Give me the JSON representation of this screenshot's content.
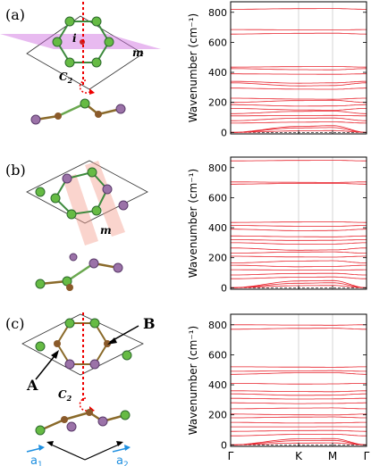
{
  "panels": [
    {
      "label": "(a)",
      "symbols": {
        "inversion": "i",
        "mirror": "m",
        "rotation": "C",
        "rotation_sub": "2"
      }
    },
    {
      "label": "(b)",
      "symbols": {
        "mirror": "m"
      }
    },
    {
      "label": "(c)",
      "symbols": {
        "site_a": "A",
        "site_b": "B",
        "rotation": "C",
        "rotation_sub": "2"
      },
      "lattice_vectors": [
        {
          "symbol": "a",
          "sub": "1"
        },
        {
          "symbol": "a",
          "sub": "2"
        }
      ]
    }
  ],
  "chart_data": [
    {
      "type": "line",
      "title": "",
      "xlabel": "",
      "ylabel": "Wavenumber (cm⁻¹)",
      "ylim": [
        -10,
        870
      ],
      "yticks": [
        0,
        200,
        400,
        600,
        800
      ],
      "x_ticks": [
        {
          "label": "Γ",
          "pos": 0
        },
        {
          "label": "K",
          "pos": 0.5
        },
        {
          "label": "M",
          "pos": 0.75
        },
        {
          "label": "Γ",
          "pos": 1
        }
      ],
      "tick_labels_shown": false,
      "zero_line": "dashed",
      "series_color": "#e8202a",
      "bands": [
        {
          "name": "b1",
          "values": [
            0,
            40,
            45,
            0
          ]
        },
        {
          "name": "b2",
          "values": [
            0,
            30,
            32,
            0
          ]
        },
        {
          "name": "b3",
          "values": [
            0,
            10,
            12,
            0
          ]
        },
        {
          "name": "b4",
          "values": [
            62,
            68,
            70,
            62
          ]
        },
        {
          "name": "b5",
          "values": [
            78,
            95,
            96,
            78
          ]
        },
        {
          "name": "b6",
          "values": [
            110,
            112,
            113,
            110
          ]
        },
        {
          "name": "b7",
          "values": [
            125,
            140,
            142,
            125
          ]
        },
        {
          "name": "b8",
          "values": [
            160,
            150,
            148,
            160
          ]
        },
        {
          "name": "b9",
          "values": [
            185,
            175,
            176,
            185
          ]
        },
        {
          "name": "b10",
          "values": [
            200,
            212,
            214,
            200
          ]
        },
        {
          "name": "b11",
          "values": [
            228,
            222,
            221,
            228
          ]
        },
        {
          "name": "b12",
          "values": [
            295,
            288,
            287,
            295
          ]
        },
        {
          "name": "b13",
          "values": [
            330,
            310,
            312,
            330
          ]
        },
        {
          "name": "b14",
          "values": [
            340,
            328,
            330,
            340
          ]
        },
        {
          "name": "b15",
          "values": [
            390,
            388,
            387,
            390
          ]
        },
        {
          "name": "b16",
          "values": [
            425,
            418,
            417,
            425
          ]
        },
        {
          "name": "b17",
          "values": [
            435,
            438,
            439,
            435
          ]
        },
        {
          "name": "b18",
          "values": [
            655,
            660,
            661,
            655
          ]
        },
        {
          "name": "b19",
          "values": [
            685,
            683,
            682,
            685
          ]
        },
        {
          "name": "b20",
          "values": [
            820,
            824,
            825,
            820
          ]
        }
      ]
    },
    {
      "type": "line",
      "title": "",
      "xlabel": "",
      "ylabel": "Wavenumber (cm⁻¹)",
      "ylim": [
        -10,
        870
      ],
      "yticks": [
        0,
        200,
        400,
        600,
        800
      ],
      "x_ticks": [
        {
          "label": "Γ",
          "pos": 0
        },
        {
          "label": "K",
          "pos": 0.5
        },
        {
          "label": "M",
          "pos": 0.75
        },
        {
          "label": "Γ",
          "pos": 1
        }
      ],
      "tick_labels_shown": false,
      "zero_line": "dashed",
      "series_color": "#e8202a",
      "bands": [
        {
          "name": "b1",
          "values": [
            0,
            45,
            48,
            0
          ]
        },
        {
          "name": "b2",
          "values": [
            0,
            30,
            33,
            0
          ]
        },
        {
          "name": "b3",
          "values": [
            0,
            14,
            15,
            0
          ]
        },
        {
          "name": "b4",
          "values": [
            60,
            70,
            72,
            60
          ]
        },
        {
          "name": "b5",
          "values": [
            85,
            95,
            96,
            85
          ]
        },
        {
          "name": "b6",
          "values": [
            120,
            118,
            117,
            120
          ]
        },
        {
          "name": "b7",
          "values": [
            150,
            140,
            142,
            150
          ]
        },
        {
          "name": "b8",
          "values": [
            165,
            178,
            180,
            165
          ]
        },
        {
          "name": "b9",
          "values": [
            210,
            205,
            204,
            210
          ]
        },
        {
          "name": "b10",
          "values": [
            230,
            238,
            239,
            230
          ]
        },
        {
          "name": "b11",
          "values": [
            265,
            250,
            252,
            265
          ]
        },
        {
          "name": "b12",
          "values": [
            300,
            290,
            291,
            300
          ]
        },
        {
          "name": "b13",
          "values": [
            320,
            315,
            316,
            320
          ]
        },
        {
          "name": "b14",
          "values": [
            345,
            340,
            339,
            345
          ]
        },
        {
          "name": "b15",
          "values": [
            390,
            380,
            381,
            390
          ]
        },
        {
          "name": "b16",
          "values": [
            415,
            410,
            409,
            415
          ]
        },
        {
          "name": "b17",
          "values": [
            435,
            438,
            439,
            435
          ]
        },
        {
          "name": "b18",
          "values": [
            690,
            695,
            696,
            690
          ]
        },
        {
          "name": "b19",
          "values": [
            705,
            702,
            701,
            705
          ]
        },
        {
          "name": "b20",
          "values": [
            845,
            848,
            849,
            845
          ]
        }
      ]
    },
    {
      "type": "line",
      "title": "",
      "xlabel": "",
      "ylabel": "Wavenumber (cm⁻¹)",
      "ylim": [
        -10,
        870
      ],
      "yticks": [
        0,
        200,
        400,
        600,
        800
      ],
      "x_ticks": [
        {
          "label": "Γ",
          "pos": 0
        },
        {
          "label": "K",
          "pos": 0.5
        },
        {
          "label": "M",
          "pos": 0.75
        },
        {
          "label": "Γ",
          "pos": 1
        }
      ],
      "tick_labels_shown": true,
      "zero_line": "dashed",
      "series_color": "#e8202a",
      "bands": [
        {
          "name": "b1",
          "values": [
            0,
            40,
            42,
            0
          ]
        },
        {
          "name": "b2",
          "values": [
            0,
            28,
            30,
            0
          ]
        },
        {
          "name": "b3",
          "values": [
            0,
            12,
            13,
            0
          ]
        },
        {
          "name": "b4",
          "values": [
            60,
            70,
            71,
            60
          ]
        },
        {
          "name": "b5",
          "values": [
            90,
            95,
            96,
            90
          ]
        },
        {
          "name": "b6",
          "values": [
            120,
            120,
            121,
            120
          ]
        },
        {
          "name": "b7",
          "values": [
            150,
            145,
            146,
            150
          ]
        },
        {
          "name": "b8",
          "values": [
            180,
            185,
            186,
            180
          ]
        },
        {
          "name": "b9",
          "values": [
            205,
            200,
            199,
            205
          ]
        },
        {
          "name": "b10",
          "values": [
            240,
            245,
            246,
            240
          ]
        },
        {
          "name": "b11",
          "values": [
            280,
            275,
            276,
            280
          ]
        },
        {
          "name": "b12",
          "values": [
            310,
            305,
            306,
            310
          ]
        },
        {
          "name": "b13",
          "values": [
            340,
            330,
            331,
            340
          ]
        },
        {
          "name": "b14",
          "values": [
            360,
            355,
            354,
            360
          ]
        },
        {
          "name": "b15",
          "values": [
            410,
            405,
            406,
            410
          ]
        },
        {
          "name": "b16",
          "values": [
            470,
            480,
            481,
            470
          ]
        },
        {
          "name": "b17",
          "values": [
            490,
            493,
            494,
            490
          ]
        },
        {
          "name": "b18",
          "values": [
            520,
            518,
            517,
            520
          ]
        },
        {
          "name": "b19",
          "values": [
            770,
            776,
            777,
            770
          ]
        },
        {
          "name": "b20",
          "values": [
            800,
            798,
            797,
            800
          ]
        }
      ]
    }
  ]
}
